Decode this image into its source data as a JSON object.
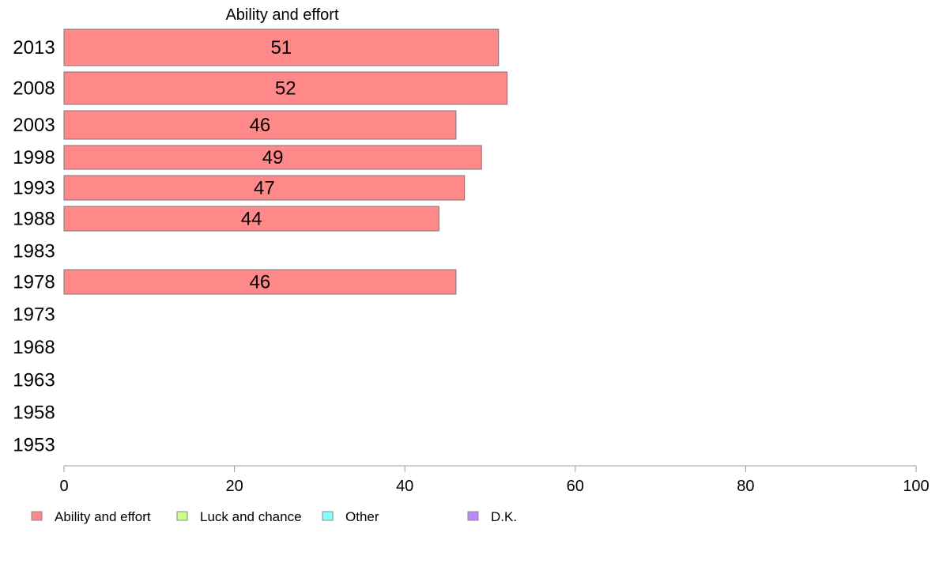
{
  "chart_data": {
    "type": "bar",
    "orientation": "horizontal",
    "title": "Ability and effort",
    "categories": [
      "2013",
      "2008",
      "2003",
      "1998",
      "1993",
      "1988",
      "1983",
      "1978",
      "1973",
      "1968",
      "1963",
      "1958",
      "1953"
    ],
    "series": [
      {
        "name": "Ability and effort",
        "color": "#ff8888",
        "values": [
          51,
          52,
          46,
          49,
          47,
          44,
          null,
          46,
          null,
          null,
          null,
          null,
          null
        ]
      }
    ],
    "xlim": [
      0,
      100
    ],
    "xticks": [
      0,
      20,
      40,
      60,
      80,
      100
    ],
    "grid": false,
    "legend": {
      "position": "bottom",
      "entries": [
        {
          "label": "Ability and effort",
          "color": "#ff8888"
        },
        {
          "label": "Luck and chance",
          "color": "#ccff88"
        },
        {
          "label": "Other",
          "color": "#88ffff"
        },
        {
          "label": "D.K.",
          "color": "#bb88ff"
        }
      ]
    }
  }
}
